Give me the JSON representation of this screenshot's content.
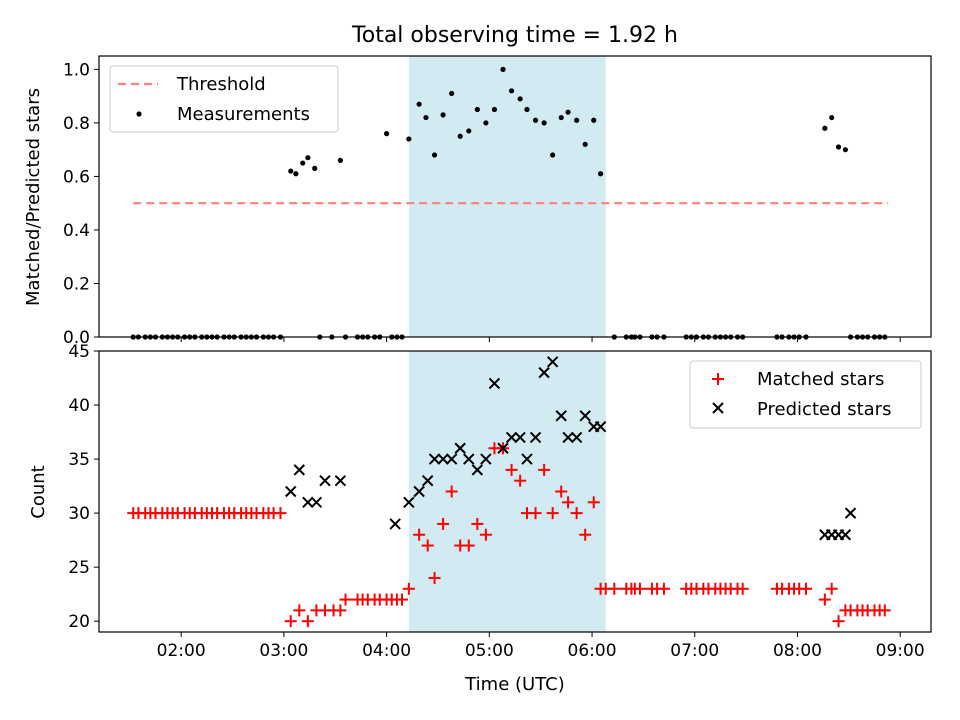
{
  "title": "Total observing time = 1.92 h",
  "colors": {
    "threshold": "#ff7f7f",
    "measurement": "#000000",
    "matched": "#ff0000",
    "predicted": "#000000",
    "shade": "#add8e6"
  },
  "chart_data": [
    {
      "type": "scatter",
      "xlabel": "",
      "ylabel": "Matched/Predicted stars",
      "xlim": [
        "01:12",
        "09:18"
      ],
      "ylim": [
        0,
        1.05
      ],
      "yticks": [
        "0.0",
        "0.2",
        "0.4",
        "0.6",
        "0.8",
        "1.0"
      ],
      "xticks": [
        "02:00",
        "03:00",
        "04:00",
        "05:00",
        "06:00",
        "07:00",
        "08:00",
        "09:00"
      ],
      "shaded_region": [
        "04:13",
        "06:08"
      ],
      "legend": {
        "position": "top-left",
        "entries": [
          "Threshold",
          "Measurements"
        ]
      },
      "threshold": {
        "name": "Threshold",
        "value": 0.5,
        "x": [
          "01:32",
          "08:53"
        ],
        "style": "dashed"
      },
      "measurements": {
        "name": "Measurements",
        "x": [
          "01:32",
          "01:35",
          "01:39",
          "01:42",
          "01:45",
          "01:49",
          "01:52",
          "01:55",
          "01:58",
          "02:02",
          "02:05",
          "02:08",
          "02:12",
          "02:15",
          "02:18",
          "02:21",
          "02:25",
          "02:28",
          "02:31",
          "02:35",
          "02:38",
          "02:41",
          "02:44",
          "02:48",
          "02:51",
          "02:54",
          "02:58",
          "03:04",
          "03:07",
          "03:11",
          "03:14",
          "03:18",
          "03:21",
          "03:28",
          "03:33",
          "03:36",
          "03:43",
          "03:46",
          "03:49",
          "03:53",
          "03:56",
          "04:00",
          "04:03",
          "04:06",
          "04:09",
          "04:13",
          "04:19",
          "04:23",
          "04:28",
          "04:33",
          "04:38",
          "04:43",
          "04:48",
          "04:53",
          "04:58",
          "05:03",
          "05:08",
          "05:13",
          "05:18",
          "05:22",
          "05:27",
          "05:32",
          "05:37",
          "05:42",
          "05:46",
          "05:51",
          "05:56",
          "06:01",
          "06:05",
          "06:13",
          "06:20",
          "06:23",
          "06:25",
          "06:28",
          "06:35",
          "06:38",
          "06:42",
          "06:55",
          "06:58",
          "07:01",
          "07:05",
          "07:08",
          "07:12",
          "07:15",
          "07:18",
          "07:21",
          "07:25",
          "07:28",
          "07:48",
          "07:51",
          "07:55",
          "07:58",
          "08:01",
          "08:05",
          "08:16",
          "08:20",
          "08:24",
          "08:28",
          "08:31",
          "08:35",
          "08:38",
          "08:41",
          "08:45",
          "08:48",
          "08:51"
        ],
        "y": [
          0,
          0,
          0,
          0,
          0,
          0,
          0,
          0,
          0,
          0,
          0,
          0,
          0,
          0,
          0,
          0,
          0,
          0,
          0,
          0,
          0,
          0,
          0,
          0,
          0,
          0,
          0,
          0.62,
          0.61,
          0.65,
          0.67,
          0.63,
          0,
          0,
          0.66,
          0,
          0,
          0,
          0,
          0,
          0,
          0.76,
          0,
          0,
          0,
          0.74,
          0.87,
          0.82,
          0.68,
          0.83,
          0.91,
          0.75,
          0.77,
          0.85,
          0.8,
          0.85,
          1.0,
          0.92,
          0.89,
          0.85,
          0.81,
          0.8,
          0.68,
          0.82,
          0.84,
          0.81,
          0.72,
          0.81,
          0.61,
          0,
          0,
          0,
          0,
          0,
          0,
          0,
          0,
          0,
          0,
          0,
          0,
          0,
          0,
          0,
          0,
          0,
          0,
          0,
          0,
          0,
          0,
          0,
          0,
          0,
          0.78,
          0.82,
          0.71,
          0.7,
          0,
          0,
          0,
          0,
          0,
          0,
          0
        ]
      }
    },
    {
      "type": "scatter",
      "xlabel": "Time (UTC)",
      "ylabel": "Count",
      "xlim": [
        "01:12",
        "09:18"
      ],
      "ylim": [
        19,
        45
      ],
      "yticks": [
        "20",
        "25",
        "30",
        "35",
        "40",
        "45"
      ],
      "xticks": [
        "02:00",
        "03:00",
        "04:00",
        "05:00",
        "06:00",
        "07:00",
        "08:00",
        "09:00"
      ],
      "shaded_region": [
        "04:13",
        "06:08"
      ],
      "legend": {
        "position": "top-right",
        "entries": [
          "Matched stars",
          "Predicted stars"
        ]
      },
      "series": [
        {
          "name": "Matched stars",
          "marker": "+",
          "x": [
            "01:32",
            "01:35",
            "01:39",
            "01:42",
            "01:45",
            "01:49",
            "01:52",
            "01:55",
            "01:58",
            "02:02",
            "02:05",
            "02:08",
            "02:12",
            "02:15",
            "02:18",
            "02:21",
            "02:25",
            "02:28",
            "02:31",
            "02:35",
            "02:38",
            "02:41",
            "02:44",
            "02:48",
            "02:51",
            "02:54",
            "02:58",
            "03:04",
            "03:09",
            "03:14",
            "03:19",
            "03:24",
            "03:29",
            "03:33",
            "03:36",
            "03:43",
            "03:46",
            "03:49",
            "03:53",
            "03:56",
            "04:00",
            "04:03",
            "04:06",
            "04:09",
            "04:13",
            "04:19",
            "04:24",
            "04:28",
            "04:33",
            "04:38",
            "04:43",
            "04:48",
            "04:53",
            "04:58",
            "05:03",
            "05:08",
            "05:13",
            "05:18",
            "05:22",
            "05:27",
            "05:32",
            "05:37",
            "05:42",
            "05:46",
            "05:51",
            "05:56",
            "06:01",
            "06:05",
            "06:08",
            "06:13",
            "06:20",
            "06:23",
            "06:25",
            "06:28",
            "06:35",
            "06:38",
            "06:42",
            "06:55",
            "06:58",
            "07:01",
            "07:05",
            "07:08",
            "07:12",
            "07:15",
            "07:18",
            "07:21",
            "07:25",
            "07:28",
            "07:48",
            "07:51",
            "07:55",
            "07:58",
            "08:01",
            "08:05",
            "08:16",
            "08:20",
            "08:24",
            "08:28",
            "08:31",
            "08:35",
            "08:38",
            "08:41",
            "08:45",
            "08:48",
            "08:51"
          ],
          "y": [
            30,
            30,
            30,
            30,
            30,
            30,
            30,
            30,
            30,
            30,
            30,
            30,
            30,
            30,
            30,
            30,
            30,
            30,
            30,
            30,
            30,
            30,
            30,
            30,
            30,
            30,
            30,
            20,
            21,
            20,
            21,
            21,
            21,
            21,
            22,
            22,
            22,
            22,
            22,
            22,
            22,
            22,
            22,
            22,
            23,
            28,
            27,
            24,
            29,
            32,
            27,
            27,
            29,
            28,
            36,
            36,
            34,
            33,
            30,
            30,
            34,
            30,
            32,
            31,
            30,
            28,
            31,
            23,
            23,
            23,
            23,
            23,
            23,
            23,
            23,
            23,
            23,
            23,
            23,
            23,
            23,
            23,
            23,
            23,
            23,
            23,
            23,
            23,
            23,
            23,
            23,
            23,
            23,
            23,
            22,
            23,
            20,
            21,
            21,
            21,
            21,
            21,
            21,
            21,
            21
          ]
        },
        {
          "name": "Predicted stars",
          "marker": "x",
          "x": [
            "03:04",
            "03:09",
            "03:14",
            "03:19",
            "03:24",
            "03:33",
            "04:05",
            "04:13",
            "04:19",
            "04:24",
            "04:28",
            "04:33",
            "04:38",
            "04:43",
            "04:48",
            "04:53",
            "04:58",
            "05:03",
            "05:08",
            "05:13",
            "05:18",
            "05:22",
            "05:27",
            "05:32",
            "05:37",
            "05:42",
            "05:46",
            "05:51",
            "05:56",
            "06:01",
            "06:05",
            "08:16",
            "08:20",
            "08:24",
            "08:28",
            "08:31"
          ],
          "y": [
            32,
            34,
            31,
            31,
            33,
            33,
            29,
            31,
            32,
            33,
            35,
            35,
            35,
            36,
            35,
            34,
            35,
            42,
            36,
            37,
            37,
            35,
            37,
            43,
            44,
            39,
            37,
            37,
            39,
            38,
            38,
            28,
            28,
            28,
            28,
            30
          ]
        }
      ]
    }
  ]
}
